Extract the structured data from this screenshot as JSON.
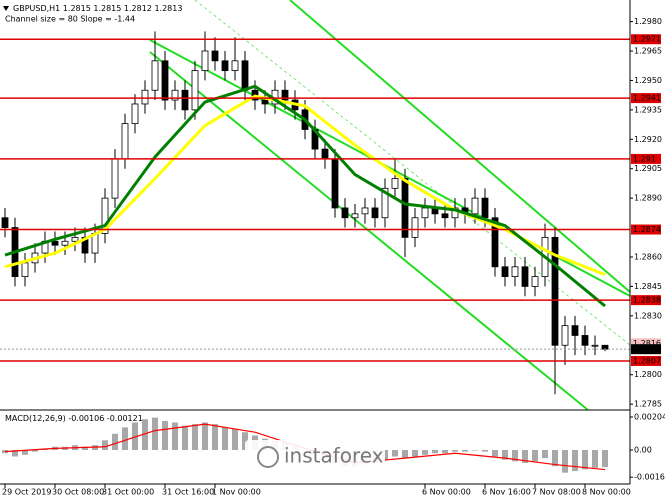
{
  "watermark": "instaforex",
  "chart_data": [
    {
      "type": "candlestick",
      "symbol": "GBPUSD,H1",
      "channel_label": "Channel size = 80 Slope = -1.44",
      "open": [
        1.288,
        1.2875,
        1.285,
        1.2857,
        1.2862,
        1.2868,
        1.2866,
        1.2868,
        1.287,
        1.2862,
        1.2872,
        1.289,
        1.291,
        1.2928,
        1.2938,
        1.2945,
        1.296,
        1.294,
        1.2945,
        1.2935,
        1.2955,
        1.2965,
        1.296,
        1.2955,
        1.296,
        1.2945,
        1.294,
        1.2938,
        1.2945,
        1.294,
        1.2935,
        1.2925,
        1.2915,
        1.291,
        1.2885,
        1.288,
        1.2882,
        1.2885,
        1.288,
        1.2895,
        1.29,
        1.287,
        1.288,
        1.2885,
        1.2882,
        1.288,
        1.2885,
        1.2882,
        1.289,
        1.288,
        1.2855,
        1.285,
        1.2855,
        1.2845,
        1.285,
        1.287,
        1.2815,
        1.2825,
        1.282,
        1.2815,
        1.2815
      ],
      "high": [
        1.2885,
        1.288,
        1.2862,
        1.2867,
        1.2873,
        1.2873,
        1.2873,
        1.2875,
        1.2875,
        1.2877,
        1.2895,
        1.2915,
        1.2933,
        1.2943,
        1.295,
        1.2975,
        1.2965,
        1.295,
        1.295,
        1.296,
        1.2975,
        1.2972,
        1.2965,
        1.2972,
        1.2965,
        1.295,
        1.2945,
        1.295,
        1.295,
        1.2945,
        1.294,
        1.293,
        1.292,
        1.2915,
        1.289,
        1.2887,
        1.289,
        1.289,
        1.29,
        1.291,
        1.2905,
        1.2885,
        1.289,
        1.289,
        1.2887,
        1.289,
        1.289,
        1.2895,
        1.2895,
        1.2885,
        1.286,
        1.286,
        1.286,
        1.2855,
        1.2877,
        1.2875,
        1.283,
        1.283,
        1.2825,
        1.282,
        1.2815
      ],
      "low": [
        1.287,
        1.2845,
        1.2845,
        1.2852,
        1.2857,
        1.2861,
        1.2861,
        1.2863,
        1.2857,
        1.2857,
        1.2867,
        1.2885,
        1.2905,
        1.2923,
        1.2933,
        1.294,
        1.2935,
        1.2935,
        1.293,
        1.293,
        1.295,
        1.2955,
        1.295,
        1.295,
        1.294,
        1.2935,
        1.2933,
        1.2933,
        1.2935,
        1.293,
        1.292,
        1.291,
        1.2905,
        1.288,
        1.2875,
        1.2875,
        1.2877,
        1.2875,
        1.2875,
        1.289,
        1.286,
        1.2865,
        1.2875,
        1.2877,
        1.2875,
        1.2875,
        1.2877,
        1.2877,
        1.2875,
        1.285,
        1.2845,
        1.2845,
        1.284,
        1.284,
        1.2845,
        1.279,
        1.2805,
        1.281,
        1.281,
        1.281,
        1.2812
      ],
      "close": [
        1.2875,
        1.285,
        1.2857,
        1.2862,
        1.2868,
        1.2866,
        1.2868,
        1.287,
        1.2862,
        1.2872,
        1.289,
        1.291,
        1.2928,
        1.2938,
        1.2945,
        1.296,
        1.294,
        1.2945,
        1.2935,
        1.2955,
        1.2965,
        1.296,
        1.2955,
        1.296,
        1.2945,
        1.294,
        1.2938,
        1.2945,
        1.294,
        1.2935,
        1.2925,
        1.2915,
        1.291,
        1.2885,
        1.288,
        1.2882,
        1.2885,
        1.288,
        1.2895,
        1.29,
        1.287,
        1.288,
        1.2885,
        1.2882,
        1.288,
        1.2885,
        1.2882,
        1.289,
        1.288,
        1.2855,
        1.285,
        1.2855,
        1.2845,
        1.285,
        1.287,
        1.2815,
        1.2825,
        1.282,
        1.2815,
        1.2815,
        1.2813
      ],
      "ma": [
        {
          "color": "#ffff00",
          "x": [
            0,
            5,
            10,
            15,
            20,
            25,
            30,
            35,
            40,
            45,
            50,
            55,
            60
          ],
          "values": [
            1.2855,
            1.2862,
            1.2874,
            1.29,
            1.2927,
            1.2942,
            1.2937,
            1.2917,
            1.2899,
            1.2884,
            1.2874,
            1.2861,
            1.2851
          ]
        },
        {
          "color": "#008000",
          "x": [
            0,
            5,
            10,
            15,
            20,
            25,
            30,
            35,
            40,
            45,
            50,
            55,
            60
          ],
          "values": [
            1.2861,
            1.2869,
            1.2876,
            1.2911,
            1.2939,
            1.2947,
            1.293,
            1.2902,
            1.2887,
            1.2884,
            1.2876,
            1.2856,
            1.2835
          ]
        }
      ],
      "levels": [
        1.2971,
        1.2941,
        1.291,
        1.2874,
        1.2838,
        1.2807
      ],
      "level_color": "#e00000",
      "current_price": 1.2813,
      "ask_price": 1.2816,
      "ylim": [
        1.2782,
        1.2991
      ],
      "yticks": [
        {
          "value": 1.298,
          "label": "1.2980"
        },
        1.2965,
        {
          "value": 1.295,
          "label": "1.2950"
        },
        1.2935,
        {
          "value": 1.292,
          "label": "1.2920"
        },
        1.2905,
        {
          "value": 1.289,
          "label": "1.2890"
        },
        {
          "value": 1.286,
          "label": "1.2860"
        },
        1.2845,
        {
          "value": 1.283,
          "label": "1.2830"
        },
        {
          "value": 1.28,
          "label": "1.2800"
        },
        1.2785
      ],
      "x_labels": [
        {
          "index": 0,
          "label": "29 Oct 2019"
        },
        {
          "index": 5,
          "label": "30 Oct 08:00"
        },
        {
          "index": 10,
          "label": "31 Oct 00:00"
        },
        {
          "index": 16,
          "label": "31 Oct 16:00"
        },
        {
          "index": 21,
          "label": "1 Nov 00:00"
        },
        {
          "index": 42,
          "label": "6 Nov 00:00"
        },
        {
          "index": 48,
          "label": "6 Nov 16:00"
        },
        {
          "index": 53,
          "label": "7 Nov 08:00"
        },
        {
          "index": 58,
          "label": "8 Nov 00:00"
        }
      ]
    },
    {
      "type": "macd",
      "title": "MACD(12,26,9)",
      "color": "#a8a8a8",
      "values": [
        -0.0002,
        -0.0004,
        -0.0003,
        -0.0001,
        0.0001,
        0.0002,
        0.0002,
        0.0003,
        0.0002,
        0.0003,
        0.0006,
        0.001,
        0.0014,
        0.0017,
        0.0019,
        0.002,
        0.0018,
        0.0017,
        0.0015,
        0.0016,
        0.0017,
        0.0016,
        0.0014,
        0.0013,
        0.0011,
        0.0009,
        0.0007,
        0.0006,
        0.0005,
        0.0003,
        0.0,
        -0.0003,
        -0.0005,
        -0.0008,
        -0.001,
        -0.001,
        -0.0009,
        -0.0008,
        -0.0006,
        -0.0004,
        -0.0005,
        -0.0004,
        -0.0003,
        -0.0002,
        -0.0002,
        -0.0001,
        -0.0001,
        0.0,
        -0.0001,
        -0.0004,
        -0.0006,
        -0.0007,
        -0.0008,
        -0.0007,
        -0.0005,
        -0.001,
        -0.0014,
        -0.0013,
        -0.0012,
        -0.0011,
        -0.00106
      ],
      "signal": {
        "color": "#ff0000",
        "x": [
          0,
          5,
          10,
          15,
          20,
          25,
          30,
          35,
          40,
          45,
          50,
          55,
          60
        ],
        "values": [
          -0.0001,
          0.0001,
          0.0002,
          0.0012,
          0.0016,
          0.0011,
          0.0001,
          -0.0008,
          -0.0005,
          -0.0002,
          -0.0005,
          -0.0009,
          -0.00121
        ]
      },
      "ylim": [
        -0.00204,
        0.00235
      ],
      "yticks": [
        0.00204,
        {
          "value": 0,
          "label": "0.00"
        },
        -0.00168
      ]
    }
  ]
}
